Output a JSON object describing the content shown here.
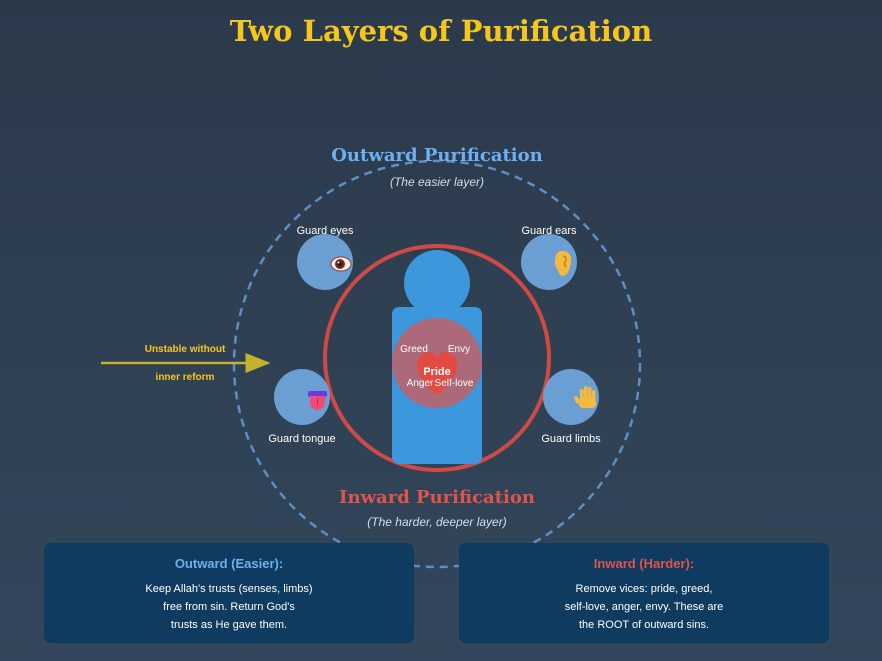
{
  "title": "Two Layers of Purification",
  "outward": {
    "heading": "Outward Purification",
    "subheading": "(The easier layer)",
    "items": [
      {
        "label": "Guard eyes",
        "icon": "eye-icon"
      },
      {
        "label": "Guard ears",
        "icon": "ear-icon"
      },
      {
        "label": "Guard tongue",
        "icon": "tongue-icon"
      },
      {
        "label": "Guard limbs",
        "icon": "hand-icon"
      }
    ]
  },
  "inward": {
    "heading": "Inward Purification",
    "subheading": "(The harder, deeper layer)",
    "vices": {
      "greed": "Greed",
      "envy": "Envy",
      "pride": "Pride",
      "anger": "Anger",
      "self_love": "Self-love"
    }
  },
  "annotation": {
    "line1": "Unstable without",
    "line2": "inner reform"
  },
  "boxes": {
    "outward": {
      "title": "Outward (Easier):",
      "lines": [
        "Keep Allah's trusts (senses, limbs)",
        "free from sin. Return God's",
        "trusts as He gave them."
      ]
    },
    "inward": {
      "title": "Inward (Harder):",
      "lines": [
        "Remove vices: pride, greed,",
        "self-love, anger, envy. These are",
        "the ROOT of outward sins."
      ]
    }
  },
  "colors": {
    "title": "#f7c61b",
    "outward_accent": "#6cb0f2",
    "inward_accent": "#e0544d",
    "figure": "#3d97dc",
    "item_circle": "#6b9fd4",
    "arrow": "#c5b22c",
    "box_bg": "#0f3b60"
  }
}
